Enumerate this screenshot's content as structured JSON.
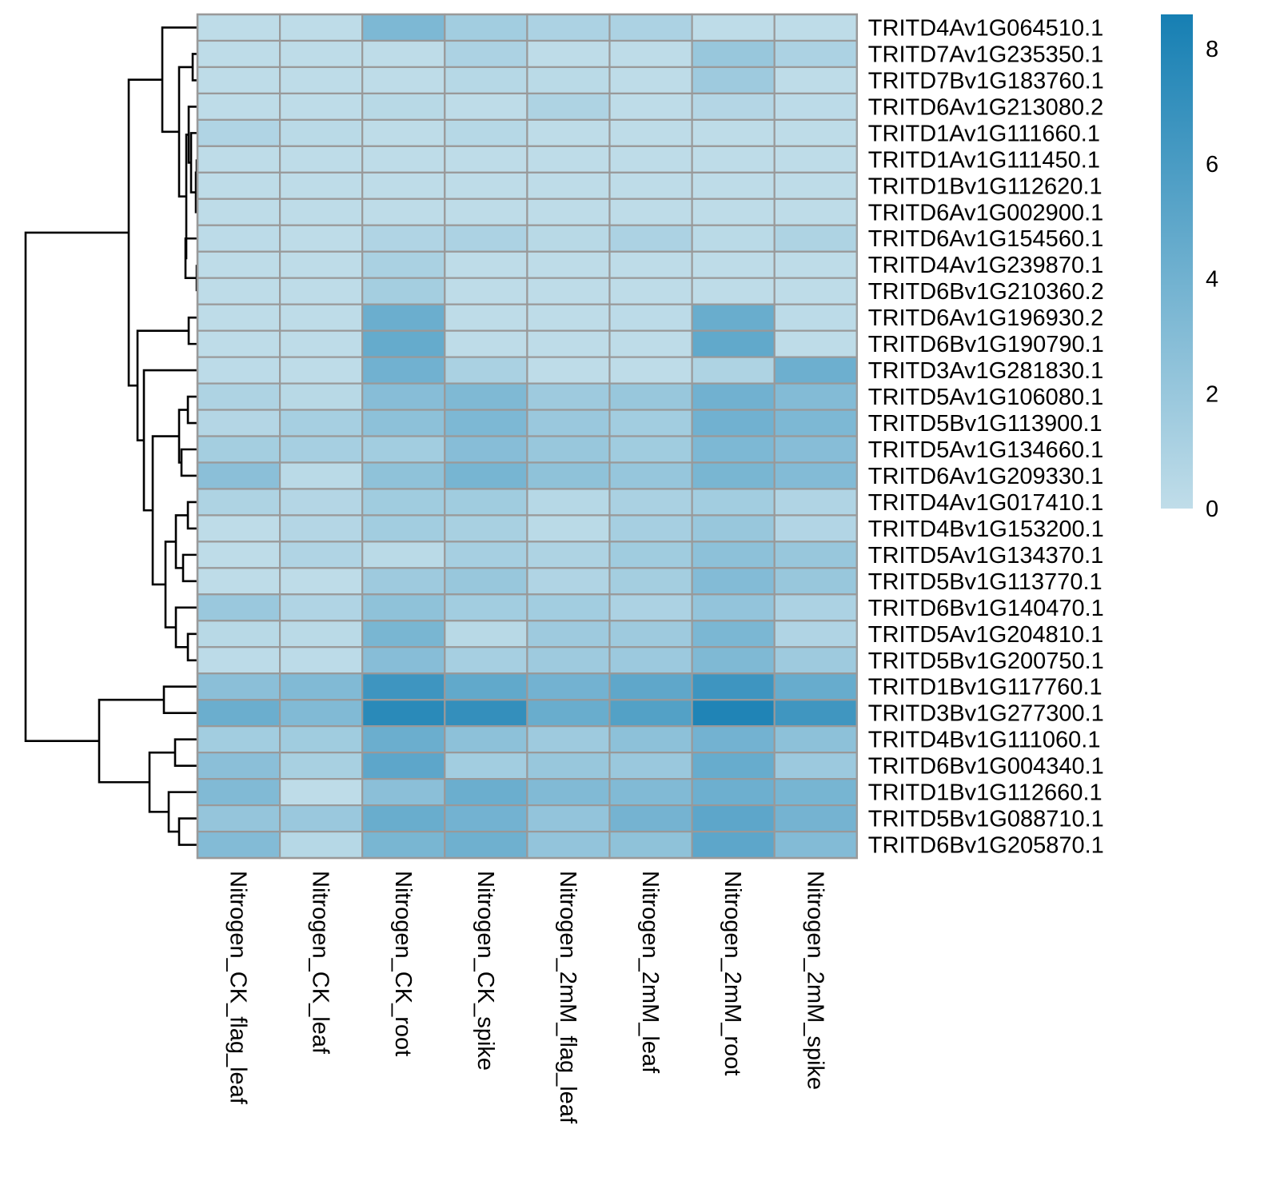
{
  "chart_data": {
    "type": "heatmap",
    "title": "",
    "xlabel": "",
    "ylabel": "",
    "columns": [
      "Nitrogen_CK_flag_leaf",
      "Nitrogen_CK_leaf",
      "Nitrogen_CK_root",
      "Nitrogen_CK_spike",
      "Nitrogen_2mM_flag_leaf",
      "Nitrogen_2mM_leaf",
      "Nitrogen_2mM_root",
      "Nitrogen_2mM_spike"
    ],
    "rows": [
      "TRITD4Av1G064510.1",
      "TRITD7Av1G235350.1",
      "TRITD7Bv1G183760.1",
      "TRITD6Av1G213080.2",
      "TRITD1Av1G111660.1",
      "TRITD1Av1G111450.1",
      "TRITD1Bv1G112620.1",
      "TRITD6Av1G002900.1",
      "TRITD6Av1G154560.1",
      "TRITD4Av1G239870.1",
      "TRITD6Bv1G210360.2",
      "TRITD6Av1G196930.2",
      "TRITD6Bv1G190790.1",
      "TRITD3Av1G281830.1",
      "TRITD5Av1G106080.1",
      "TRITD5Bv1G113900.1",
      "TRITD5Av1G134660.1",
      "TRITD6Av1G209330.1",
      "TRITD4Av1G017410.1",
      "TRITD4Bv1G153200.1",
      "TRITD5Av1G134370.1",
      "TRITD5Bv1G113770.1",
      "TRITD6Bv1G140470.1",
      "TRITD5Av1G204810.1",
      "TRITD5Bv1G200750.1",
      "TRITD1Bv1G117760.1",
      "TRITD3Bv1G277300.1",
      "TRITD4Bv1G111060.1",
      "TRITD6Bv1G004340.1",
      "TRITD1Bv1G112660.1",
      "TRITD5Bv1G088710.1",
      "TRITD6Bv1G205870.1"
    ],
    "values": [
      [
        0.1,
        0.1,
        3.4,
        1.5,
        1.0,
        1.0,
        0.1,
        0.1
      ],
      [
        0.1,
        0.1,
        0.1,
        1.0,
        0.1,
        0.1,
        2.0,
        1.0
      ],
      [
        0.1,
        0.1,
        0.1,
        0.5,
        0.3,
        0.1,
        1.7,
        0.1
      ],
      [
        0.1,
        0.1,
        0.4,
        0.1,
        0.9,
        0.1,
        0.6,
        0.2
      ],
      [
        0.8,
        0.3,
        0.1,
        0.5,
        0.1,
        0.1,
        0.1,
        0.1
      ],
      [
        0.1,
        0.1,
        0.1,
        0.1,
        0.1,
        0.1,
        0.1,
        0.1
      ],
      [
        0.1,
        0.1,
        0.1,
        0.1,
        0.1,
        0.1,
        0.1,
        0.1
      ],
      [
        0.1,
        0.1,
        0.1,
        0.1,
        0.1,
        0.1,
        0.1,
        0.1
      ],
      [
        0.2,
        0.1,
        0.8,
        1.0,
        0.4,
        1.0,
        0.3,
        0.9
      ],
      [
        0.1,
        0.1,
        1.1,
        0.1,
        0.1,
        0.1,
        0.1,
        0.1
      ],
      [
        0.1,
        0.1,
        1.4,
        0.1,
        0.1,
        0.1,
        0.1,
        0.1
      ],
      [
        0.1,
        0.1,
        4.3,
        0.1,
        0.1,
        0.2,
        4.4,
        0.2
      ],
      [
        0.1,
        0.1,
        4.6,
        0.1,
        0.1,
        0.1,
        4.8,
        0.1
      ],
      [
        0.2,
        0.1,
        4.0,
        1.1,
        0.1,
        0.1,
        0.9,
        4.2
      ],
      [
        0.9,
        0.4,
        2.9,
        3.3,
        1.7,
        2.0,
        4.0,
        3.1
      ],
      [
        0.6,
        1.3,
        2.6,
        3.4,
        1.9,
        1.5,
        4.0,
        3.4
      ],
      [
        1.4,
        1.3,
        1.5,
        2.9,
        2.0,
        1.6,
        3.4,
        2.9
      ],
      [
        2.7,
        0.3,
        2.5,
        3.7,
        2.5,
        2.1,
        3.6,
        3.1
      ],
      [
        0.9,
        0.6,
        1.6,
        1.6,
        0.5,
        1.1,
        1.5,
        0.8
      ],
      [
        0.1,
        0.6,
        1.5,
        1.2,
        0.3,
        1.3,
        2.0,
        0.7
      ],
      [
        0.1,
        0.8,
        0.3,
        1.3,
        0.9,
        1.6,
        2.6,
        2.0
      ],
      [
        0.1,
        0.1,
        1.7,
        2.0,
        0.8,
        1.4,
        3.1,
        2.0
      ],
      [
        1.9,
        0.8,
        2.5,
        1.5,
        1.5,
        1.0,
        2.3,
        1.0
      ],
      [
        0.4,
        0.3,
        3.6,
        0.4,
        1.7,
        1.7,
        3.5,
        0.8
      ],
      [
        0.2,
        0.2,
        2.9,
        1.3,
        1.7,
        1.8,
        3.3,
        1.7
      ],
      [
        2.7,
        3.2,
        6.6,
        4.8,
        3.9,
        4.9,
        6.6,
        4.5
      ],
      [
        4.3,
        3.2,
        7.6,
        7.1,
        4.4,
        5.5,
        8.1,
        6.5
      ],
      [
        1.5,
        1.6,
        4.3,
        2.6,
        1.7,
        2.6,
        3.9,
        2.6
      ],
      [
        2.7,
        1.2,
        5.0,
        1.5,
        2.0,
        1.9,
        4.5,
        1.8
      ],
      [
        3.2,
        0.1,
        2.7,
        4.3,
        3.2,
        3.2,
        4.2,
        3.7
      ],
      [
        2.2,
        1.9,
        4.4,
        3.9,
        2.3,
        3.8,
        5.0,
        3.8
      ],
      [
        3.1,
        0.5,
        3.6,
        4.1,
        2.3,
        2.5,
        5.0,
        3.1
      ]
    ],
    "colorbar": {
      "ticks": [
        "0",
        "2",
        "4",
        "6",
        "8"
      ],
      "tick_values": [
        0,
        2,
        4,
        6,
        8
      ],
      "range": [
        0,
        8.6
      ],
      "color_low": "#c0dde9",
      "color_high": "#167fb3"
    },
    "row_dendrogram": "left",
    "cell_border_color": "#999999",
    "dendrogram_color": "#000000"
  }
}
